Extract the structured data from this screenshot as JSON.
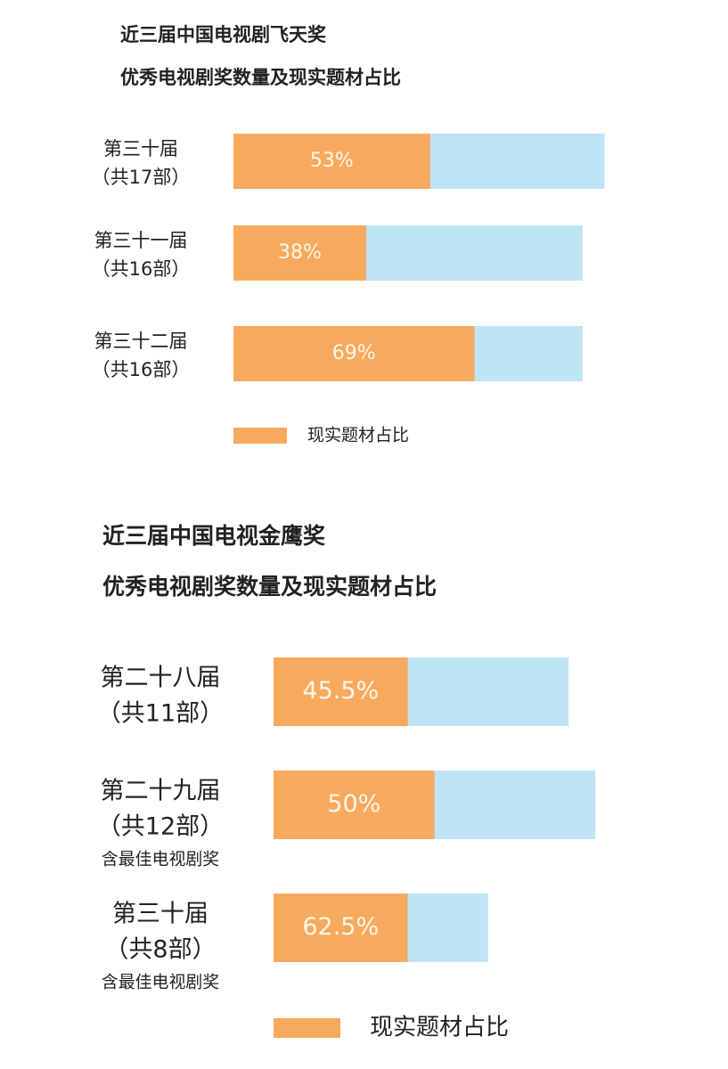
{
  "chart_data": [
    {
      "type": "bar",
      "title": "近三届中国电视剧飞天奖",
      "subtitle": "优秀电视剧奖数量及现实题材占比",
      "categories": [
        "第三十届",
        "第三十一届",
        "第三十二届"
      ],
      "count_labels": [
        "（共17部）",
        "（共16部）",
        "（共16部）"
      ],
      "counts": [
        17,
        16,
        16
      ],
      "total_color": "#bfe4f7",
      "series": [
        {
          "name": "现实题材占比",
          "color": "#f7a95e",
          "values": [
            53,
            38,
            69
          ],
          "value_labels": [
            "53%",
            "38%",
            "69%"
          ]
        }
      ]
    },
    {
      "type": "bar",
      "title": "近三届中国电视金鹰奖",
      "subtitle": "优秀电视剧奖数量及现实题材占比",
      "categories": [
        "第二十八届",
        "第二十九届",
        "第三十届"
      ],
      "count_labels": [
        "（共11部）",
        "（共12部）",
        "（共8部）"
      ],
      "notes": [
        null,
        "含最佳电视剧奖",
        "含最佳电视剧奖"
      ],
      "counts": [
        11,
        12,
        8
      ],
      "total_color": "#bfe4f7",
      "series": [
        {
          "name": "现实题材占比",
          "color": "#f7a95e",
          "values": [
            45.5,
            50,
            62.5
          ],
          "value_labels": [
            "45.5%",
            "50%",
            "62.5%"
          ]
        }
      ]
    }
  ]
}
